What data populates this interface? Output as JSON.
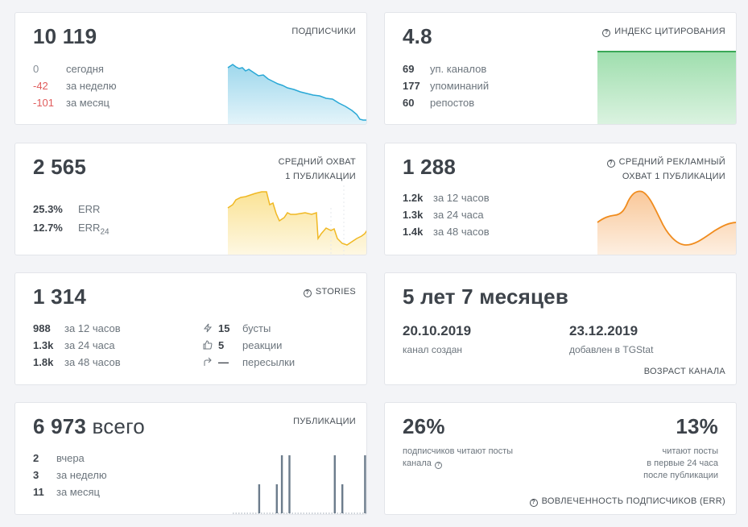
{
  "subscribers": {
    "value": "10 119",
    "title": "ПОДПИСЧИКИ",
    "rows": [
      {
        "value": "0",
        "label": "сегодня"
      },
      {
        "value": "-42",
        "label": "за неделю"
      },
      {
        "value": "-101",
        "label": "за месяц"
      }
    ],
    "color": "#29a8d6"
  },
  "citation": {
    "value": "4.8",
    "title": "ИНДЕКС ЦИТИРОВАНИЯ",
    "rows": [
      {
        "value": "69",
        "label": "уп. каналов"
      },
      {
        "value": "177",
        "label": "упоминаний"
      },
      {
        "value": "60",
        "label": "репостов"
      }
    ],
    "color": "#4fc36a"
  },
  "reach": {
    "value": "2 565",
    "title_line1": "СРЕДНИЙ ОХВАТ",
    "title_line2": "1 ПУБЛИКАЦИИ",
    "err_value": "25.3%",
    "err_label": "ERR",
    "err24_value": "12.7%",
    "err24_label": "ERR",
    "err24_sub": "24",
    "color": "#f3c22d"
  },
  "ad_reach": {
    "value": "1 288",
    "title_line1": "СРЕДНИЙ РЕКЛАМНЫЙ",
    "title_line2": "ОХВАТ 1 ПУБЛИКАЦИИ",
    "rows": [
      {
        "value": "1.2k",
        "label": "за 12 часов"
      },
      {
        "value": "1.3k",
        "label": "за 24 часа"
      },
      {
        "value": "1.4k",
        "label": "за 48 часов"
      }
    ],
    "color": "#f08c1e"
  },
  "stories": {
    "value": "1 314",
    "title": "STORIES",
    "rows": [
      {
        "value": "988",
        "label": "за 12 часов"
      },
      {
        "value": "1.3k",
        "label": "за 24 часа"
      },
      {
        "value": "1.8k",
        "label": "за 48 часов"
      }
    ],
    "stats": [
      {
        "icon": "lightning-icon",
        "value": "15",
        "label": "бусты"
      },
      {
        "icon": "thumbs-up-icon",
        "value": "5",
        "label": "реакции"
      },
      {
        "icon": "share-arrow-icon",
        "value": "—",
        "label": "пересылки"
      }
    ]
  },
  "age": {
    "value": "5 лет 7 месяцев",
    "created_date": "20.10.2019",
    "created_label": "канал создан",
    "added_date": "23.12.2019",
    "added_label": "добавлен в TGStat",
    "title": "ВОЗРАСТ КАНАЛА"
  },
  "posts": {
    "value": "6 973",
    "suffix": "всего",
    "title": "ПУБЛИКАЦИИ",
    "rows": [
      {
        "value": "2",
        "label": "вчера"
      },
      {
        "value": "3",
        "label": "за неделю"
      },
      {
        "value": "11",
        "label": "за месяц"
      }
    ],
    "daily_counts": [
      0,
      0,
      0,
      0,
      0,
      0,
      0,
      0,
      0,
      0,
      1,
      0,
      0,
      0,
      0,
      0,
      0,
      1,
      0,
      2,
      0,
      0,
      2,
      0,
      0,
      0,
      0,
      0,
      0,
      0,
      0,
      0,
      0,
      0,
      0,
      0,
      0,
      0,
      0,
      0,
      2,
      0,
      0,
      1,
      0,
      0,
      0,
      0,
      0,
      0,
      0,
      0,
      2
    ],
    "color": "#6c7c8c"
  },
  "engagement": {
    "left_value": "26%",
    "left_label_line1": "подписчиков читают посты",
    "left_label_line2": "канала",
    "right_value": "13%",
    "right_label_line1": "читают посты",
    "right_label_line2": "в первые 24 часа",
    "right_label_line3": "после публикации",
    "title": "ВОВЛЕЧЕННОСТЬ ПОДПИСЧИКОВ (ERR)"
  }
}
